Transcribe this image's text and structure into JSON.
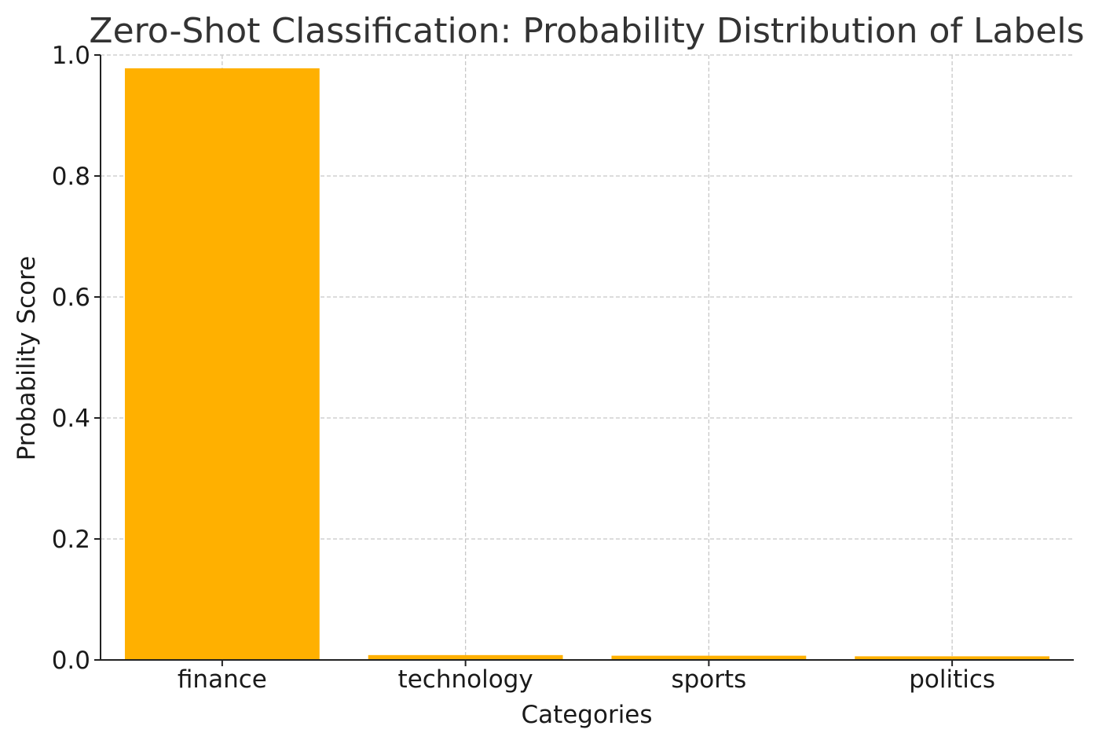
{
  "chart_data": {
    "type": "bar",
    "title": "Zero-Shot Classification: Probability Distribution of Labels",
    "xlabel": "Categories",
    "ylabel": "Probability Score",
    "categories": [
      "finance",
      "technology",
      "sports",
      "politics"
    ],
    "values": [
      0.978,
      0.008,
      0.007,
      0.006
    ],
    "ylim": [
      0,
      1.0
    ],
    "yticks": [
      "0.0",
      "0.2",
      "0.4",
      "0.6",
      "0.8",
      "1.0"
    ],
    "grid": true,
    "legend": "none",
    "colors": {
      "bar": "#ffb000",
      "grid": "#c8c8c8",
      "axis": "#222222",
      "title": "#333333"
    }
  }
}
